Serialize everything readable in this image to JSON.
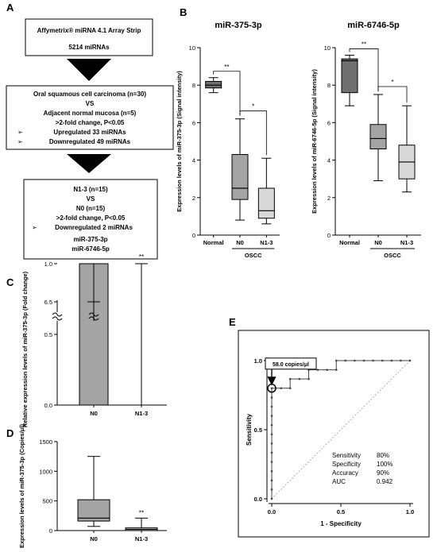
{
  "panels": {
    "A": {
      "letter": "A",
      "box1": {
        "line1": "Affymetrix® miRNA 4.1 Array Strip",
        "line2": "5214 miRNAs"
      },
      "box2": {
        "line1": "Oral squamous cell carcinoma (n=30)",
        "line2": "VS",
        "line3": "Adjacent normal mucosa (n=5)",
        "line4": ">2-fold change, P<0.05",
        "line5": "Upregulated 33 miRNAs",
        "line6": "Downregulated 49 miRNAs"
      },
      "box3": {
        "line1": "N1-3 (n=15)",
        "line2": "VS",
        "line3": "N0 (n=15)",
        "line4": ">2-fold change, P<0.05",
        "line5": "Downregulated 2 miRNAs",
        "line6": "miR-375-3p",
        "line7": "miR-6746-5p"
      }
    },
    "B": {
      "letter": "B"
    },
    "C": {
      "letter": "C"
    },
    "D": {
      "letter": "D"
    },
    "E": {
      "letter": "E"
    }
  },
  "chart_data": [
    {
      "id": "B1",
      "type": "box",
      "title": "miR-375-3p",
      "ylabel": "Expression levels of miR-375-3p (Signal intensity)",
      "categories": [
        "Normal",
        "N0",
        "N1-3"
      ],
      "group_label": "OSCC",
      "ylim": [
        0,
        10
      ],
      "yticks": [
        "0",
        "2",
        "4",
        "6",
        "8",
        "10"
      ],
      "boxes": [
        {
          "min": 7.6,
          "q1": 7.85,
          "median": 8.0,
          "q3": 8.2,
          "max": 8.4,
          "color": "#707070"
        },
        {
          "min": 0.8,
          "q1": 1.9,
          "median": 2.5,
          "q3": 4.3,
          "max": 6.2,
          "color": "#a4a4a4"
        },
        {
          "min": 0.6,
          "q1": 0.9,
          "median": 1.3,
          "q3": 2.5,
          "max": 4.1,
          "color": "#d9d9d9"
        }
      ],
      "sig": [
        {
          "from": 0,
          "to": 1,
          "label": "**"
        },
        {
          "from": 1,
          "to": 2,
          "label": "*"
        }
      ]
    },
    {
      "id": "B2",
      "type": "box",
      "title": "miR-6746-5p",
      "ylabel": "Expression levels of miR-6746-5p (Signal intensity)",
      "categories": [
        "Normal",
        "N0",
        "N1-3"
      ],
      "group_label": "OSCC",
      "ylim": [
        0,
        10
      ],
      "yticks": [
        "0",
        "2",
        "4",
        "6",
        "8",
        "10"
      ],
      "boxes": [
        {
          "min": 6.9,
          "q1": 7.6,
          "median": 9.3,
          "q3": 9.4,
          "max": 9.6,
          "color": "#707070"
        },
        {
          "min": 2.9,
          "q1": 4.6,
          "median": 5.15,
          "q3": 5.9,
          "max": 7.5,
          "color": "#a4a4a4"
        },
        {
          "min": 2.3,
          "q1": 3.0,
          "median": 3.9,
          "q3": 4.8,
          "max": 6.9,
          "color": "#d9d9d9"
        }
      ],
      "sig": [
        {
          "from": 0,
          "to": 1,
          "label": "**"
        },
        {
          "from": 1,
          "to": 2,
          "label": "*"
        }
      ]
    },
    {
      "id": "C",
      "type": "bar",
      "ylabel": "Relative expression levels of miR-375-3p (Fold change)",
      "categories": [
        "N0",
        "N1-3"
      ],
      "values": [
        1.0,
        0.0
      ],
      "errors": [
        5.5,
        1.0
      ],
      "yticks": [
        "0.0",
        "0.5",
        "1.0",
        "6.5"
      ],
      "axis_break": true,
      "color": "#a4a4a4",
      "sig_label": "**"
    },
    {
      "id": "D",
      "type": "box",
      "ylabel": "Expression levels of miR-375-3p (Copies/μl)",
      "categories": [
        "N0",
        "N1-3"
      ],
      "ylim": [
        0,
        1500
      ],
      "yticks": [
        "0",
        "500",
        "1000",
        "1500"
      ],
      "boxes": [
        {
          "min": 70,
          "q1": 160,
          "median": 210,
          "q3": 520,
          "max": 1250,
          "color": "#a4a4a4"
        },
        {
          "min": 0,
          "q1": 0,
          "median": 20,
          "q3": 45,
          "max": 210,
          "color": "#d9d9d9"
        }
      ],
      "sig_label": "**"
    },
    {
      "id": "E",
      "type": "line",
      "xlabel": "1 - Specificity",
      "ylabel": "Sensitivity",
      "xlim": [
        0,
        1
      ],
      "ylim": [
        0,
        1
      ],
      "xticks": [
        "0.0",
        "0.5",
        "1.0"
      ],
      "yticks": [
        "0.0",
        "0.5",
        "1.0"
      ],
      "points": [
        [
          0,
          0
        ],
        [
          0,
          0.067
        ],
        [
          0,
          0.133
        ],
        [
          0,
          0.2
        ],
        [
          0,
          0.267
        ],
        [
          0,
          0.333
        ],
        [
          0,
          0.4
        ],
        [
          0,
          0.467
        ],
        [
          0,
          0.533
        ],
        [
          0,
          0.6
        ],
        [
          0,
          0.667
        ],
        [
          0,
          0.733
        ],
        [
          0,
          0.8
        ],
        [
          0.067,
          0.8
        ],
        [
          0.133,
          0.8
        ],
        [
          0.133,
          0.867
        ],
        [
          0.2,
          0.867
        ],
        [
          0.267,
          0.867
        ],
        [
          0.267,
          0.933
        ],
        [
          0.333,
          0.933
        ],
        [
          0.4,
          0.933
        ],
        [
          0.467,
          0.933
        ],
        [
          0.467,
          1.0
        ],
        [
          0.533,
          1.0
        ],
        [
          0.6,
          1.0
        ],
        [
          0.667,
          1.0
        ],
        [
          0.733,
          1.0
        ],
        [
          0.8,
          1.0
        ],
        [
          0.867,
          1.0
        ],
        [
          0.933,
          1.0
        ],
        [
          1.0,
          1.0
        ]
      ],
      "cutoff": {
        "x": 0,
        "y": 0.8,
        "label": "58.0 copies/μl"
      },
      "stats": [
        {
          "name": "Sensitivity",
          "value": "80%"
        },
        {
          "name": "Specificity",
          "value": "100%"
        },
        {
          "name": "Accuracy",
          "value": "90%"
        },
        {
          "name": "AUC",
          "value": "0.942"
        }
      ]
    }
  ]
}
